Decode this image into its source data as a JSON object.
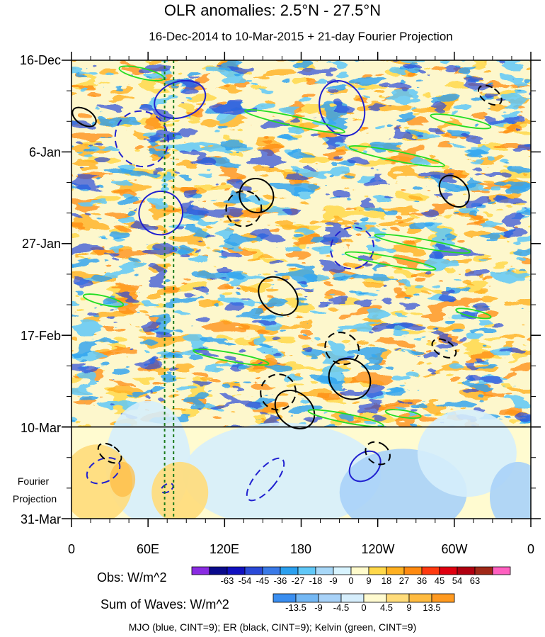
{
  "chart_data": {
    "type": "heatmap",
    "title": "OLR anomalies: 2.5°N - 27.5°N",
    "subtitle": "16-Dec-2014 to 10-Mar-2015 + 21-day Fourier Projection",
    "x_ticks": [
      "0",
      "60E",
      "120E",
      "180",
      "120W",
      "60W",
      "0"
    ],
    "y_ticks": [
      "16-Dec",
      "6-Jan",
      "27-Jan",
      "17-Feb",
      "10-Mar",
      "31-Mar"
    ],
    "projection_label": [
      "Fourier",
      "Projection"
    ],
    "xlim": [
      0,
      360
    ],
    "ylim_days": [
      0,
      105
    ],
    "projection_start_day": 84,
    "reference_lines_deg": [
      73,
      80
    ],
    "obs_colorbar": {
      "label": "Obs: W/m^2",
      "ticks": [
        "-63",
        "-54",
        "-45",
        "-36",
        "-27",
        "-18",
        "-9",
        "0",
        "9",
        "18",
        "27",
        "36",
        "45",
        "54",
        "63"
      ],
      "colors": [
        "#8a2be2",
        "#0a0a8c",
        "#1010c0",
        "#2a4ad8",
        "#3a7ae8",
        "#2aa0f0",
        "#60c8f8",
        "#a8d8f8",
        "#d8f4ff",
        "#fffbcc",
        "#ffd84a",
        "#ffb020",
        "#ff8a10",
        "#ff3a10",
        "#e00010",
        "#b00010",
        "#a02818",
        "#ff60c0"
      ]
    },
    "wave_colorbar": {
      "label": "Sum of Waves: W/m^2",
      "ticks": [
        "-13.5",
        "-9",
        "-4.5",
        "0",
        "4.5",
        "9",
        "13.5"
      ],
      "colors": [
        "#3a8ef0",
        "#74b8f4",
        "#a8d2f8",
        "#d6eefc",
        "#fffbd0",
        "#ffdc7a",
        "#ffbb40",
        "#ff9a20"
      ]
    },
    "legend_text": "MJO (blue, CINT=9); ER (black, CINT=9); Kelvin (green, CINT=9)",
    "contours": {
      "mjo_blue": [
        {
          "lon": 85,
          "day": 9,
          "a": 14,
          "b": 6,
          "ang": 72,
          "dash": false
        },
        {
          "lon": 55,
          "day": 18,
          "a": 22,
          "b": 6,
          "ang": 64,
          "dash": true
        },
        {
          "lon": 70,
          "day": 35,
          "a": 17,
          "b": 5,
          "ang": 62,
          "dash": false
        },
        {
          "lon": 212,
          "day": 11,
          "a": 22,
          "b": 5,
          "ang": 70,
          "dash": false
        },
        {
          "lon": 220,
          "day": 43,
          "a": 16,
          "b": 5,
          "ang": 62,
          "dash": true
        },
        {
          "lon": 152,
          "day": 96,
          "a": 8,
          "b": 6,
          "ang": 40,
          "dash": true
        },
        {
          "lon": 230,
          "day": 93,
          "a": 10,
          "b": 4,
          "ang": 48,
          "dash": false
        },
        {
          "lon": 25,
          "day": 94,
          "a": 9,
          "b": 4,
          "ang": 64,
          "dash": true
        },
        {
          "lon": 75,
          "day": 98,
          "a": 3,
          "b": 1.5,
          "ang": 60,
          "dash": true
        }
      ],
      "er_black": [
        {
          "lon": 145,
          "day": 31,
          "a": 13,
          "b": 4,
          "ang": -45,
          "dash": false
        },
        {
          "lon": 162,
          "day": 54,
          "a": 13,
          "b": 5,
          "ang": -48,
          "dash": false
        },
        {
          "lon": 218,
          "day": 73,
          "a": 15,
          "b": 5,
          "ang": -50,
          "dash": false
        },
        {
          "lon": 175,
          "day": 80,
          "a": 13,
          "b": 5,
          "ang": -48,
          "dash": false
        },
        {
          "lon": 135,
          "day": 34,
          "a": 14,
          "b": 4,
          "ang": -50,
          "dash": true
        },
        {
          "lon": 162,
          "day": 76,
          "a": 14,
          "b": 4,
          "ang": -58,
          "dash": true
        },
        {
          "lon": 212,
          "day": 66,
          "a": 12,
          "b": 4,
          "ang": -58,
          "dash": true
        },
        {
          "lon": 300,
          "day": 30,
          "a": 10,
          "b": 4,
          "ang": -40,
          "dash": false
        },
        {
          "lon": 328,
          "day": 8,
          "a": 6,
          "b": 3,
          "ang": -55,
          "dash": true
        },
        {
          "lon": 292,
          "day": 66,
          "a": 6,
          "b": 3,
          "ang": -60,
          "dash": true
        },
        {
          "lon": 240,
          "day": 90,
          "a": 8,
          "b": 3,
          "ang": -55,
          "dash": true
        },
        {
          "lon": 10,
          "day": 13,
          "a": 6,
          "b": 3,
          "ang": -58,
          "dash": false
        },
        {
          "lon": 30,
          "day": 90,
          "a": 6,
          "b": 3,
          "ang": -55,
          "dash": true
        }
      ],
      "kelvin_green": [
        {
          "lon": 55,
          "day": 3,
          "a": 18,
          "b": 1.2,
          "ang": 13,
          "dash": false
        },
        {
          "lon": 175,
          "day": 14,
          "a": 40,
          "b": 1.1,
          "ang": 12,
          "dash": false
        },
        {
          "lon": 255,
          "day": 22,
          "a": 38,
          "b": 1.1,
          "ang": 11,
          "dash": false
        },
        {
          "lon": 305,
          "day": 14,
          "a": 24,
          "b": 1.0,
          "ang": 11,
          "dash": false
        },
        {
          "lon": 275,
          "day": 42,
          "a": 38,
          "b": 1.0,
          "ang": 10,
          "dash": false
        },
        {
          "lon": 250,
          "day": 46,
          "a": 36,
          "b": 1.0,
          "ang": 10,
          "dash": false
        },
        {
          "lon": 125,
          "day": 68,
          "a": 30,
          "b": 1.0,
          "ang": 10,
          "dash": false
        },
        {
          "lon": 215,
          "day": 82,
          "a": 30,
          "b": 1.0,
          "ang": 11,
          "dash": false
        },
        {
          "lon": 25,
          "day": 55,
          "a": 16,
          "b": 1.0,
          "ang": 13,
          "dash": false
        },
        {
          "lon": 260,
          "day": 81,
          "a": 14,
          "b": 0.8,
          "ang": 8,
          "dash": false
        },
        {
          "lon": 315,
          "day": 58,
          "a": 14,
          "b": 0.8,
          "ang": 12,
          "dash": false
        }
      ]
    }
  }
}
